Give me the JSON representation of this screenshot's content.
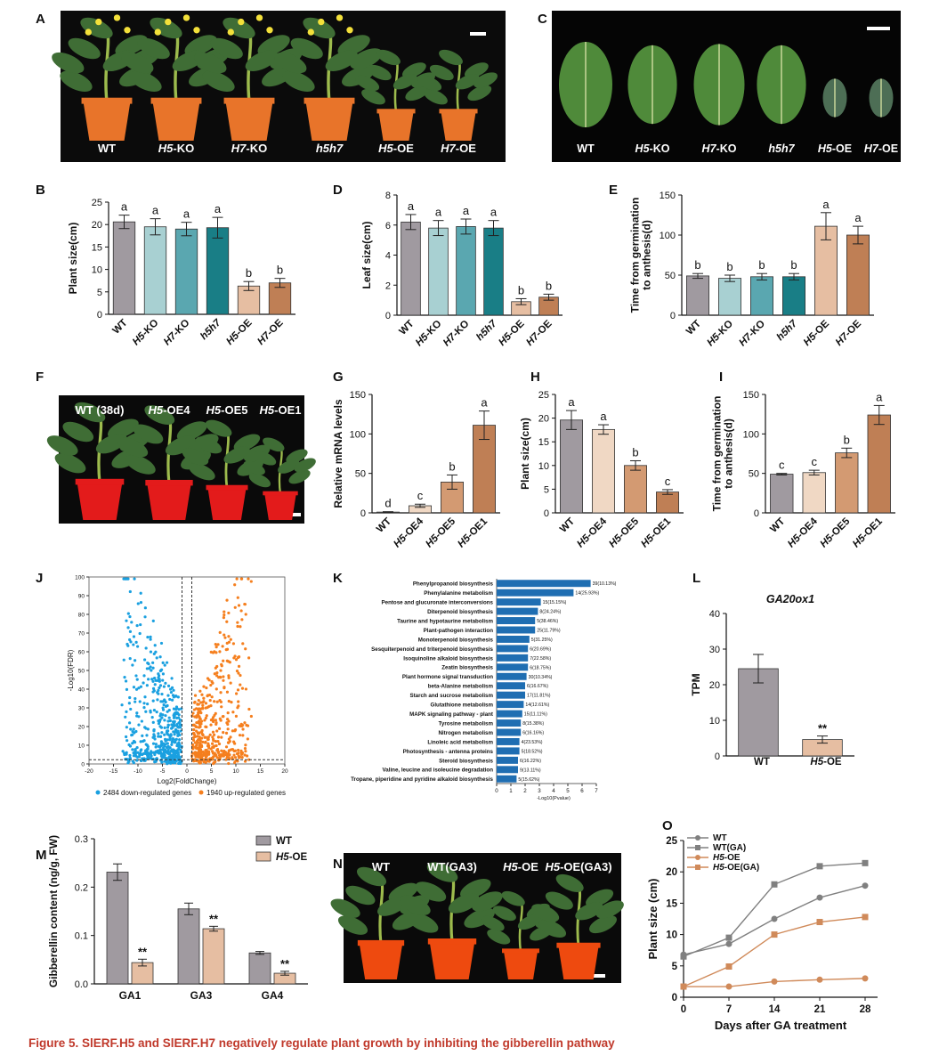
{
  "caption": "Figure 5. SlERF.H5 and SlERF.H7 negatively regulate plant growth by inhibiting the gibberellin pathway",
  "panel_letters": [
    "A",
    "B",
    "C",
    "D",
    "E",
    "F",
    "G",
    "H",
    "I",
    "J",
    "K",
    "L",
    "M",
    "N",
    "O"
  ],
  "photos": {
    "A": {
      "labels": [
        "WT",
        "H5-KO",
        "H7-KO",
        "h5h7",
        "H5-OE",
        "H7-OE"
      ],
      "plant_vigor": [
        1,
        1,
        1,
        1,
        0.45,
        0.45
      ]
    },
    "C": {
      "labels": [
        "WT",
        "H5-KO",
        "H7-KO",
        "h5h7",
        "H5-OE",
        "H7-OE"
      ],
      "leaf_size": [
        1,
        0.92,
        0.95,
        0.92,
        0.45,
        0.45
      ]
    },
    "F": {
      "labels": [
        "WT (38d)",
        "H5-OE4",
        "H5-OE5",
        "H5-OE1"
      ],
      "plant_vigor": [
        1,
        0.95,
        0.7,
        0.4
      ]
    },
    "N": {
      "labels": [
        "WT",
        "WT(GA3)",
        "H5-OE",
        "H5-OE(GA3)"
      ],
      "plant_vigor": [
        1,
        1.1,
        0.5,
        0.85
      ]
    }
  },
  "colors": {
    "grey": "#a09aa0",
    "light_teal": "#a8d0d2",
    "mid_teal": "#5aa7b0",
    "dark_teal": "#197e86",
    "peach": "#e6bea2",
    "brown": "#bf7f55",
    "blue_volcano": "#1aa0e0",
    "orange_volcano": "#f57f1e",
    "kegg_bar": "#1f6eb2",
    "caption": "#c0392b",
    "pot": "#e85a12"
  },
  "chart_data": [
    {
      "panel": "B",
      "type": "bar",
      "categories": [
        "WT",
        "H5-KO",
        "H7-KO",
        "h5h7",
        "H5-OE",
        "H7-OE"
      ],
      "values": [
        20.6,
        19.5,
        19.0,
        19.3,
        6.3,
        7.0
      ],
      "errors": [
        1.5,
        1.8,
        1.5,
        2.3,
        1.0,
        1.0
      ],
      "letters": [
        "a",
        "a",
        "a",
        "a",
        "b",
        "b"
      ],
      "ylabel": "Plant size(cm)",
      "ylim": [
        0,
        25
      ],
      "yticks": [
        "0",
        "5",
        "10",
        "15",
        "20",
        "25"
      ]
    },
    {
      "panel": "D",
      "type": "bar",
      "categories": [
        "WT",
        "H5-KO",
        "H7-KO",
        "h5h7",
        "H5-OE",
        "H7-OE"
      ],
      "values": [
        6.2,
        5.8,
        5.9,
        5.8,
        0.9,
        1.2
      ],
      "errors": [
        0.5,
        0.5,
        0.5,
        0.5,
        0.2,
        0.2
      ],
      "letters": [
        "a",
        "a",
        "a",
        "a",
        "b",
        "b"
      ],
      "ylabel": "Leaf size(cm)",
      "ylim": [
        0,
        8
      ],
      "yticks": [
        "0",
        "2",
        "4",
        "6",
        "8"
      ]
    },
    {
      "panel": "E",
      "type": "bar",
      "categories": [
        "WT",
        "H5-KO",
        "H7-KO",
        "h5h7",
        "H5-OE",
        "H7-OE"
      ],
      "values": [
        49,
        46,
        48,
        48,
        111,
        100
      ],
      "errors": [
        3,
        4,
        4,
        4,
        17,
        11
      ],
      "letters": [
        "b",
        "b",
        "b",
        "b",
        "a",
        "a"
      ],
      "ylabel": "Time from germination to anthesis(d)",
      "ylim": [
        0,
        150
      ],
      "yticks": [
        "0",
        "50",
        "100",
        "150"
      ]
    },
    {
      "panel": "G",
      "type": "bar",
      "categories": [
        "WT",
        "H5-OE4",
        "H5-OE5",
        "H5-OE1"
      ],
      "values": [
        1,
        9,
        39,
        111
      ],
      "errors": [
        0.5,
        2,
        9,
        18
      ],
      "letters": [
        "d",
        "c",
        "b",
        "a"
      ],
      "ylabel": "Relative mRNA levels",
      "ylim": [
        0,
        150
      ],
      "yticks": [
        "0",
        "50",
        "100",
        "150"
      ]
    },
    {
      "panel": "H",
      "type": "bar",
      "categories": [
        "WT",
        "H5-OE4",
        "H5-OE5",
        "H5-OE1"
      ],
      "values": [
        19.6,
        17.6,
        10.0,
        4.4
      ],
      "errors": [
        2.0,
        1.0,
        1.0,
        0.5
      ],
      "letters": [
        "a",
        "a",
        "b",
        "c"
      ],
      "ylabel": "Plant size(cm)",
      "ylim": [
        0,
        25
      ],
      "yticks": [
        "0",
        "5",
        "10",
        "15",
        "20",
        "25"
      ]
    },
    {
      "panel": "I",
      "type": "bar",
      "categories": [
        "WT",
        "H5-OE4",
        "H5-OE5",
        "H5-OE1"
      ],
      "values": [
        49,
        51,
        76,
        124
      ],
      "errors": [
        1,
        3,
        6,
        12
      ],
      "letters": [
        "c",
        "c",
        "b",
        "a"
      ],
      "ylabel": "Time from germination to anthesis(d)",
      "ylim": [
        0,
        150
      ],
      "yticks": [
        "0",
        "50",
        "100",
        "150"
      ]
    },
    {
      "panel": "J",
      "type": "scatter",
      "xlabel": "Log2(FoldChange)",
      "ylabel": "-Log10(FDR)",
      "xlim": [
        -20,
        20
      ],
      "ylim": [
        0,
        100
      ],
      "xticks": [
        "-20",
        "-15",
        "-10",
        "-5",
        "0",
        "5",
        "10",
        "15",
        "20"
      ],
      "yticks": [
        "0",
        "10",
        "20",
        "30",
        "40",
        "50",
        "60",
        "70",
        "80",
        "90",
        "100"
      ],
      "series": [
        {
          "name": "2484 down-regulated genes",
          "count": 2484,
          "color": "#1aa0e0"
        },
        {
          "name": "1940 up-regulated genes",
          "count": 1940,
          "color": "#f57f1e"
        }
      ],
      "threshold_lines": {
        "x": [
          -1,
          1
        ],
        "y": 1.3
      }
    },
    {
      "panel": "K",
      "type": "bar",
      "orientation": "horizontal",
      "xlabel": "-Log10(Pvalue)",
      "xlim": [
        0,
        7
      ],
      "xticks": [
        "0",
        "1",
        "2",
        "3",
        "4",
        "5",
        "6",
        "7"
      ],
      "categories": [
        "Phenylpropanoid biosynthesis",
        "Phenylalanine metabolism",
        "Pentose and glucuronate interconversions",
        "Diterpenoid biosynthesis",
        "Taurine and hypotaurine metabolism",
        "Plant-pathogen interaction",
        "Monoterpenoid biosynthesis",
        "Sesquiterpenoid and triterpenoid biosynthesis",
        "Isoquinoline alkaloid biosynthesis",
        "Zeatin biosynthesis",
        "Plant hormone signal transduction",
        "beta-Alanine metabolism",
        "Starch and sucrose metabolism",
        "Glutathione metabolism",
        "MAPK signaling pathway - plant",
        "Tyrosine metabolism",
        "Nitrogen metabolism",
        "Linoleic acid metabolism",
        "Photosynthesis - antenna proteins",
        "Steroid biosynthesis",
        "Valine, leucine and isoleucine degradation",
        "Tropane, piperidine and pyridine alkaloid biosynthesis"
      ],
      "values": [
        6.6,
        5.4,
        3.1,
        2.9,
        2.7,
        2.7,
        2.3,
        2.2,
        2.2,
        2.2,
        2.1,
        2.0,
        2.0,
        1.9,
        1.8,
        1.7,
        1.7,
        1.6,
        1.6,
        1.5,
        1.5,
        1.4
      ],
      "annotations": [
        "39(10.13%)",
        "14(25.93%)",
        "15(15.15%)",
        "8(24.24%)",
        "5(38.46%)",
        "25(11.79%)",
        "5(31.25%)",
        "6(20.69%)",
        "7(22.58%)",
        "6(18.75%)",
        "30(10.34%)",
        "6(16.67%)",
        "17(11.81%)",
        "14(12.61%)",
        "15(11.11%)",
        "8(15.38%)",
        "6(16.16%)",
        "4(23.53%)",
        "5(18.52%)",
        "6(16.22%)",
        "9(13.11%)",
        "5(15.62%)"
      ]
    },
    {
      "panel": "L",
      "type": "bar",
      "title": "GA20ox1",
      "categories": [
        "WT",
        "H5-OE"
      ],
      "values": [
        24.5,
        4.6
      ],
      "errors": [
        4,
        1
      ],
      "significance": [
        "",
        "**"
      ],
      "ylabel": "TPM",
      "ylim": [
        0,
        40
      ],
      "yticks": [
        "0",
        "10",
        "20",
        "30",
        "40"
      ]
    },
    {
      "panel": "M",
      "type": "bar",
      "categories": [
        "GA1",
        "GA3",
        "GA4"
      ],
      "series": [
        {
          "name": "WT",
          "values": [
            0.231,
            0.155,
            0.064
          ],
          "errors": [
            0.017,
            0.012,
            0.003
          ],
          "color": "#a09aa0"
        },
        {
          "name": "H5-OE",
          "values": [
            0.044,
            0.114,
            0.022
          ],
          "errors": [
            0.007,
            0.005,
            0.004
          ],
          "color": "#e6bea2"
        }
      ],
      "significance": [
        "**",
        "**",
        "**"
      ],
      "ylabel": "Gibberellin content (ng/g, FW)",
      "ylim": [
        0,
        0.3
      ],
      "yticks": [
        "0.0",
        "0.1",
        "0.2",
        "0.3"
      ],
      "legend": "top-right"
    },
    {
      "panel": "O",
      "type": "line",
      "x": [
        0,
        7,
        14,
        21,
        28
      ],
      "xticks": [
        "0",
        "7",
        "14",
        "21",
        "28"
      ],
      "series": [
        {
          "name": "WT",
          "values": [
            6.8,
            8.5,
            12.5,
            15.9,
            17.8
          ],
          "color": "#808080",
          "marker": "circle"
        },
        {
          "name": "WT(GA)",
          "values": [
            6.5,
            9.5,
            18.0,
            20.9,
            21.4
          ],
          "color": "#808080",
          "marker": "square"
        },
        {
          "name": "H5-OE",
          "values": [
            1.7,
            1.7,
            2.5,
            2.8,
            3.0
          ],
          "color": "#d08a5a",
          "marker": "circle"
        },
        {
          "name": "H5-OE(GA)",
          "values": [
            1.7,
            4.9,
            10.0,
            12.0,
            12.8
          ],
          "color": "#d08a5a",
          "marker": "square"
        }
      ],
      "xlabel": "Days after GA treatment",
      "ylabel": "Plant size (cm)",
      "ylim": [
        0,
        25
      ],
      "yticks": [
        "0",
        "5",
        "10",
        "15",
        "20",
        "25"
      ],
      "legend": "top-left"
    }
  ]
}
